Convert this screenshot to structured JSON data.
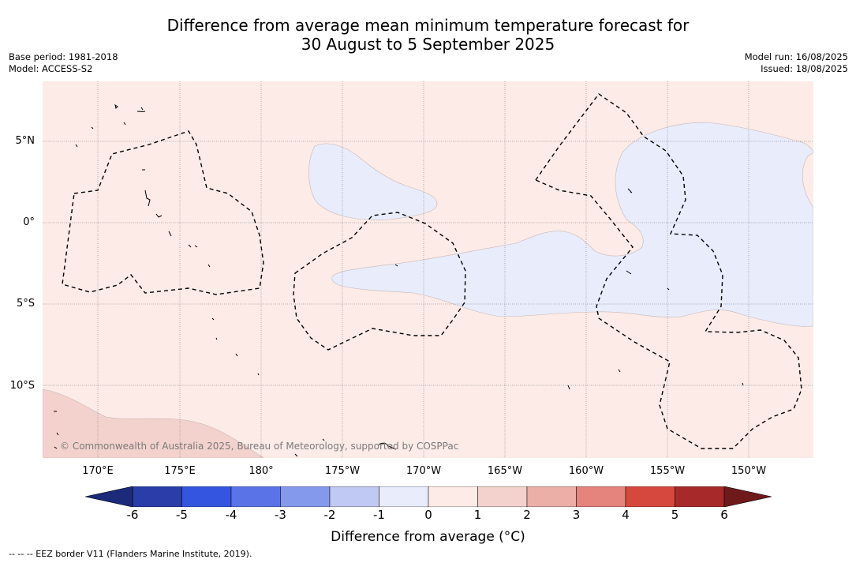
{
  "title": {
    "line1": "Difference from average mean minimum temperature forecast for",
    "line2": "30 August to 5 September 2025"
  },
  "meta": {
    "base_period": "Base period: 1981-2018",
    "model": "Model: ACCESS-S2",
    "model_run": "Model run: 16/08/2025",
    "issued": "Issued: 18/08/2025"
  },
  "map": {
    "lat_labels": [
      "5°N",
      "0°",
      "5°S",
      "10°S"
    ],
    "lon_labels": [
      "170°E",
      "175°E",
      "180°",
      "175°W",
      "170°W",
      "165°W",
      "160°W",
      "155°W",
      "150°W"
    ],
    "copyright": "© Commonwealth of Australia 2025, Bureau of Meteorology, supported by COSPPac"
  },
  "colorbar": {
    "ticks": [
      "-6",
      "-5",
      "-4",
      "-3",
      "-2",
      "-1",
      "0",
      "1",
      "2",
      "3",
      "4",
      "5",
      "6"
    ],
    "colors": [
      "#2a3da8",
      "#3455e0",
      "#5a74e8",
      "#8599ec",
      "#c0c9f3",
      "#e8ecfb",
      "#fcebe7",
      "#f3d2cd",
      "#ebafa8",
      "#e4847c",
      "#d6483d",
      "#a8292a"
    ],
    "under_color": "#1c2a7a",
    "over_color": "#6e1a1b",
    "title": "Difference from average (°C)"
  },
  "footnote": "-- -- -- EEZ border V11 (Flanders Marine Institute, 2019)."
}
